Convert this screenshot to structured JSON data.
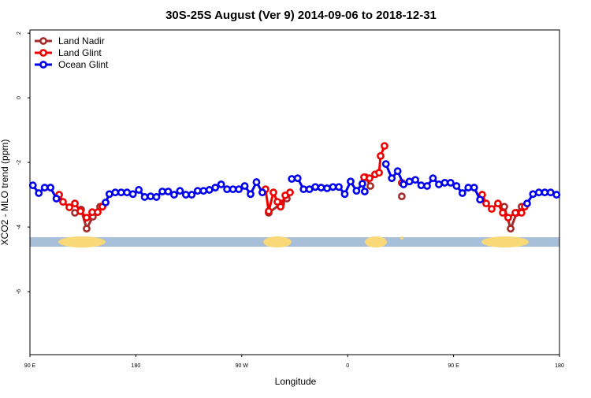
{
  "chart_data": {
    "type": "line",
    "title": "30S-25S August (Ver 9)   2014-09-06 to 2018-12-31",
    "xlabel": "Longitude",
    "ylabel": "XCO2 - MLO trend (ppm)",
    "xlim": [
      90,
      540
    ],
    "ylim": [
      -7.95,
      2.1
    ],
    "xticks": [
      {
        "value": 90,
        "label": "90 E"
      },
      {
        "value": 180,
        "label": "180"
      },
      {
        "value": 270,
        "label": "90 W"
      },
      {
        "value": 360,
        "label": "0"
      },
      {
        "value": 450,
        "label": "90 E"
      },
      {
        "value": 540,
        "label": "180"
      }
    ],
    "yticks": [
      2,
      0,
      -2,
      -4,
      -6
    ],
    "legend": "top-left",
    "series": [
      {
        "name": "Land Nadir",
        "color": "#a52a2a",
        "x": [
          128.2,
          133.5,
          138.2,
          143.5,
          149.6,
          null,
          292.9,
          303.6,
          308.3,
          null,
          375.2,
          379.3,
          null,
          406,
          null,
          493.1,
          498.5,
          503.8,
          507.8
        ],
        "values": [
          -3.56,
          -3.46,
          -4.05,
          -3.68,
          -3.37,
          null,
          -3.56,
          -3.27,
          -3.12,
          null,
          -2.46,
          -2.73,
          null,
          -3.05,
          null,
          -3.37,
          -4.05,
          -3.56,
          -3.37
        ]
      },
      {
        "name": "Land Glint",
        "color": "#ee0000",
        "x": [
          114.8,
          118.1,
          123.5,
          128.2,
          132.9,
          138.2,
          142.9,
          147.6,
          151.6,
          null,
          290.2,
          292.9,
          296.9,
          300.3,
          303.0,
          307.0,
          311.0,
          null,
          373.9,
          378.6,
          383.3,
          386.7,
          388.0,
          391.3,
          null,
          406.0,
          null,
          474.3,
          477.7,
          482.4,
          487.7,
          491.8,
          496.4,
          502.5,
          507.8,
          510.5
        ],
        "values": [
          -3.0,
          -3.22,
          -3.39,
          -3.27,
          -3.51,
          -3.71,
          -3.54,
          -3.54,
          -3.37,
          null,
          -2.83,
          -3.51,
          -2.93,
          -3.22,
          -3.37,
          -3.02,
          -2.93,
          null,
          -2.46,
          -2.49,
          -2.37,
          -2.32,
          -1.8,
          -1.49,
          null,
          -2.63,
          null,
          -3.0,
          -3.27,
          -3.44,
          -3.27,
          -3.56,
          -3.71,
          -3.56,
          -3.56,
          -3.37
        ]
      },
      {
        "name": "Ocean Glint",
        "color": "#0000ee",
        "x": [
          92.5,
          97.5,
          102.5,
          107.5,
          112.5,
          null,
          154.3,
          157.5,
          162.5,
          167.5,
          172.5,
          177.5,
          182.5,
          187.5,
          192.5,
          197.5,
          202.5,
          207.5,
          212.5,
          217.5,
          222.5,
          227.5,
          232.5,
          237.5,
          242.5,
          247.5,
          252.5,
          257.5,
          262.5,
          267.5,
          272.5,
          277.5,
          282.5,
          287.5,
          null,
          312.5,
          317.5,
          322.5,
          327.5,
          332.5,
          337.5,
          342.5,
          347.5,
          352.5,
          357.5,
          362.5,
          367.5,
          372.5,
          374.5,
          null,
          392.5,
          397.5,
          402.5,
          407.5,
          412.5,
          417.5,
          422.5,
          427.5,
          432.5,
          437.5,
          442.5,
          447.5,
          452.5,
          457.5,
          462.5,
          467.5,
          472.5,
          null,
          512.5,
          517.5,
          522.5,
          527.5,
          532.5,
          537.5
        ],
        "values": [
          -2.71,
          -2.95,
          -2.78,
          -2.78,
          -3.12,
          null,
          -3.24,
          -2.98,
          -2.93,
          -2.93,
          -2.93,
          -2.98,
          -2.85,
          -3.07,
          -3.05,
          -3.07,
          -2.9,
          -2.9,
          -3.0,
          -2.88,
          -3.0,
          -3.0,
          -2.88,
          -2.88,
          -2.85,
          -2.78,
          -2.68,
          -2.83,
          -2.83,
          -2.83,
          -2.73,
          -2.98,
          -2.61,
          -2.93,
          null,
          -2.51,
          -2.49,
          -2.83,
          -2.83,
          -2.76,
          -2.78,
          -2.8,
          -2.76,
          -2.76,
          -2.98,
          -2.59,
          -2.88,
          -2.66,
          -2.9,
          null,
          -2.05,
          -2.49,
          -2.27,
          -2.68,
          -2.59,
          -2.54,
          -2.71,
          -2.73,
          -2.49,
          -2.68,
          -2.63,
          -2.63,
          -2.73,
          -2.95,
          -2.78,
          -2.78,
          -3.15,
          null,
          -3.27,
          -2.98,
          -2.93,
          -2.93,
          -2.93,
          -3.0
        ]
      }
    ]
  }
}
